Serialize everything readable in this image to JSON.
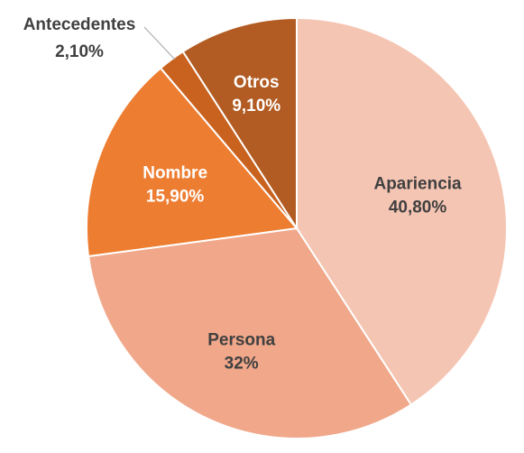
{
  "chart_data": {
    "type": "pie",
    "title": "",
    "legend": "none",
    "slices": [
      {
        "label": "Apariencia",
        "value": 40.8,
        "display": "40,80%",
        "color": "#F5C5B3",
        "text_color": "#404040"
      },
      {
        "label": "Persona",
        "value": 32.0,
        "display": "32%",
        "color": "#F0A78A",
        "text_color": "#404040"
      },
      {
        "label": "Nombre",
        "value": 15.9,
        "display": "15,90%",
        "color": "#ED7D31",
        "text_color": "#ffffff"
      },
      {
        "label": "Antecedentes",
        "value": 2.1,
        "display": "2,10%",
        "color": "#C9621F",
        "text_color": "#404040"
      },
      {
        "label": "Otros",
        "value": 9.1,
        "display": "9,10%",
        "color": "#B25B22",
        "text_color": "#ffffff"
      }
    ]
  }
}
